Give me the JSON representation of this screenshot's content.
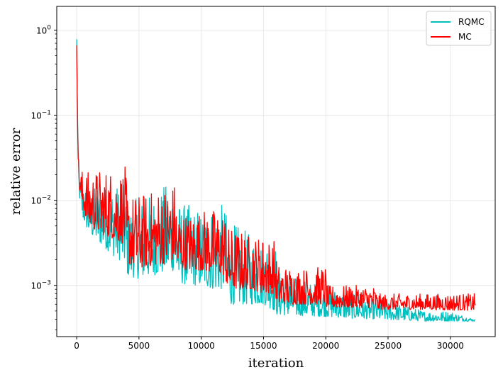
{
  "chart_data": {
    "type": "line",
    "title": "",
    "xlabel": "iteration",
    "ylabel": "relative error",
    "x_scale": "linear",
    "y_scale": "log",
    "xlim": [
      -1600,
      33600
    ],
    "ylim": [
      0.00025,
      1.9
    ],
    "x_ticks": [
      0,
      5000,
      10000,
      15000,
      20000,
      25000,
      30000
    ],
    "y_ticks": [
      {
        "value": 1,
        "label": "10^0",
        "base": "10",
        "exp": "0"
      },
      {
        "value": 0.1,
        "label": "10^-1",
        "base": "10",
        "exp": "−1"
      },
      {
        "value": 0.01,
        "label": "10^-2",
        "base": "10",
        "exp": "−2"
      },
      {
        "value": 0.001,
        "label": "10^-3",
        "base": "10",
        "exp": "−3"
      }
    ],
    "grid": true,
    "legend_position": "top-right",
    "series": [
      {
        "name": "RQMC",
        "color": "#00bfbf",
        "x": [
          0,
          50,
          100,
          200,
          300,
          500,
          1000,
          2000,
          3000,
          3900,
          4100,
          5000,
          6000,
          7000,
          7900,
          8100,
          9000,
          10000,
          11000,
          11900,
          12100,
          13000,
          14000,
          15000,
          15900,
          16100,
          18000,
          20000,
          22000,
          24000,
          26000,
          28000,
          30000,
          32000
        ],
        "low": [
          0.5,
          0.12,
          0.03,
          0.012,
          0.008,
          0.006,
          0.004,
          0.003,
          0.0022,
          0.0018,
          0.0013,
          0.0012,
          0.0013,
          0.0014,
          0.0015,
          0.0011,
          0.001,
          0.001,
          0.0009,
          0.0009,
          0.0006,
          0.0006,
          0.0006,
          0.0006,
          0.0005,
          0.00045,
          0.00044,
          0.00043,
          0.00041,
          0.0004,
          0.00039,
          0.00038,
          0.00038,
          0.00038
        ],
        "high": [
          1.2,
          0.5,
          0.05,
          0.02,
          0.018,
          0.016,
          0.014,
          0.015,
          0.016,
          0.015,
          0.009,
          0.011,
          0.012,
          0.015,
          0.02,
          0.01,
          0.009,
          0.008,
          0.009,
          0.009,
          0.006,
          0.005,
          0.004,
          0.004,
          0.004,
          0.0015,
          0.0012,
          0.001,
          0.0008,
          0.0007,
          0.0006,
          0.0005,
          0.0005,
          0.0004
        ]
      },
      {
        "name": "MC",
        "color": "#ff0000",
        "x": [
          0,
          50,
          100,
          200,
          300,
          500,
          1000,
          2000,
          3000,
          3900,
          4100,
          5000,
          6000,
          7000,
          7900,
          8100,
          9000,
          10000,
          11000,
          11900,
          12100,
          13000,
          14000,
          15000,
          15900,
          16100,
          18000,
          20000,
          20100,
          22000,
          24000,
          24100,
          26000,
          28000,
          30000,
          32000
        ],
        "low": [
          0.6,
          0.15,
          0.035,
          0.015,
          0.01,
          0.008,
          0.005,
          0.004,
          0.0035,
          0.003,
          0.0018,
          0.0016,
          0.0017,
          0.0018,
          0.002,
          0.0016,
          0.0015,
          0.0015,
          0.0014,
          0.0013,
          0.0009,
          0.0009,
          0.0009,
          0.0008,
          0.0008,
          0.0006,
          0.0006,
          0.0006,
          0.00055,
          0.00055,
          0.00054,
          0.00052,
          0.00052,
          0.00052,
          0.00051,
          0.00051
        ],
        "high": [
          1.3,
          0.6,
          0.045,
          0.025,
          0.023,
          0.023,
          0.022,
          0.024,
          0.024,
          0.025,
          0.012,
          0.012,
          0.013,
          0.015,
          0.017,
          0.008,
          0.007,
          0.008,
          0.008,
          0.008,
          0.005,
          0.0045,
          0.004,
          0.0038,
          0.0035,
          0.0018,
          0.0016,
          0.0017,
          0.001,
          0.001,
          0.001,
          0.0008,
          0.0008,
          0.0008,
          0.0008,
          0.0008
        ]
      }
    ]
  }
}
